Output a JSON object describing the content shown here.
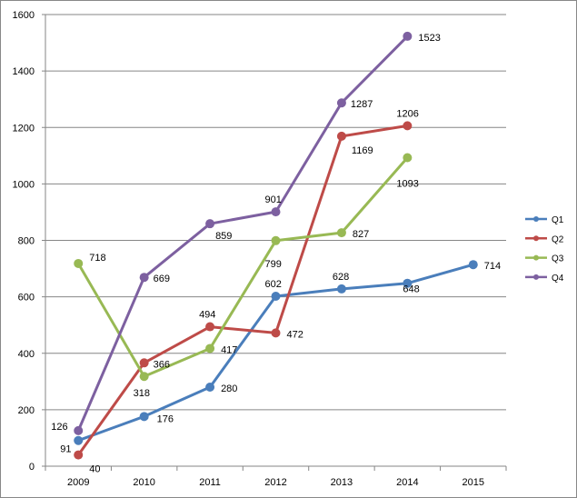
{
  "chart_data": {
    "type": "line",
    "title": "",
    "xlabel": "",
    "ylabel": "",
    "categories": [
      "2009",
      "2010",
      "2011",
      "2012",
      "2013",
      "2014",
      "2015"
    ],
    "ylim": [
      0,
      1600
    ],
    "yticks": [
      0,
      200,
      400,
      600,
      800,
      1000,
      1200,
      1400,
      1600
    ],
    "grid": true,
    "legend_position": "right",
    "series": [
      {
        "name": "Q1",
        "color": "#4A7EBB",
        "values": [
          91,
          176,
          280,
          602,
          628,
          648,
          714
        ]
      },
      {
        "name": "Q2",
        "color": "#BE4B48",
        "values": [
          40,
          366,
          494,
          472,
          1169,
          1206,
          null
        ]
      },
      {
        "name": "Q3",
        "color": "#98B954",
        "values": [
          718,
          318,
          417,
          799,
          827,
          1093,
          null
        ]
      },
      {
        "name": "Q4",
        "color": "#7D60A0",
        "values": [
          126,
          669,
          859,
          901,
          1287,
          1523,
          null
        ]
      }
    ]
  }
}
